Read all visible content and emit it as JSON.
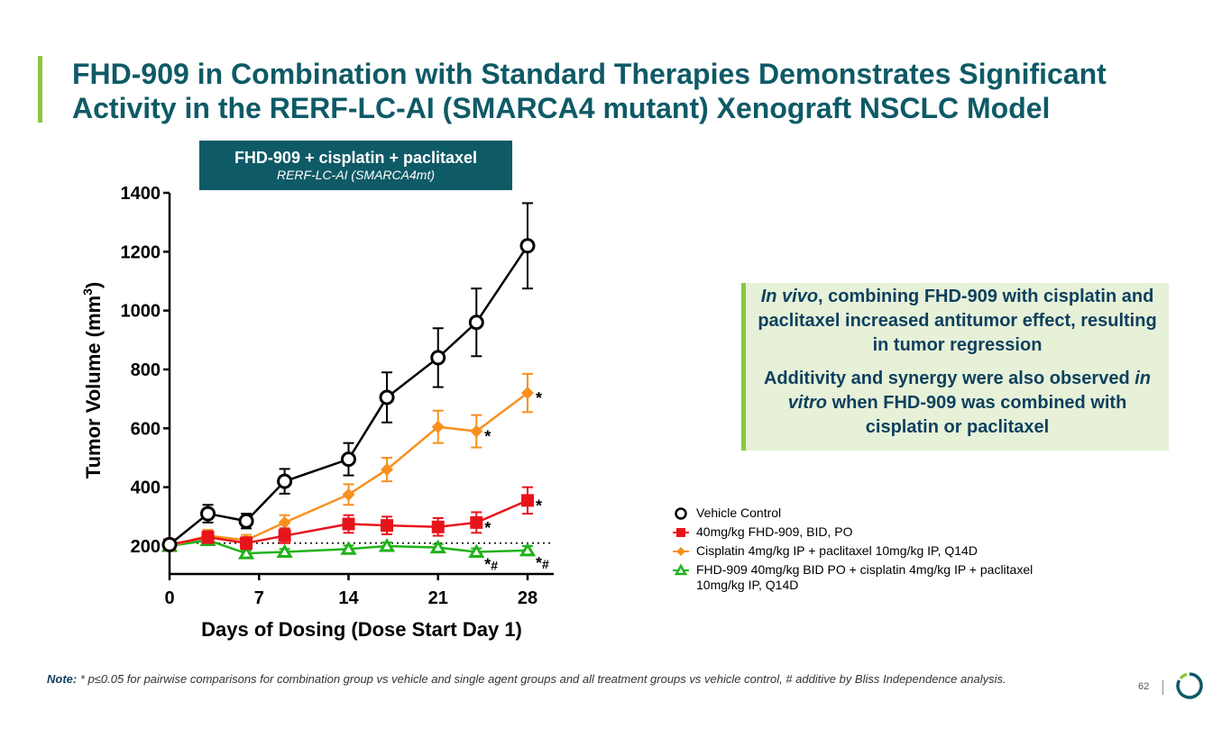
{
  "title": "FHD-909 in Combination with Standard Therapies Demonstrates Significant Activity in the RERF-LC-AI (SMARCA4 mutant) Xenograft NSCLC Model",
  "chart_header": {
    "line1": "FHD-909 + cisplatin + paclitaxel",
    "line2": "RERF-LC-AI (SMARCA4mt)"
  },
  "insight": {
    "p1_em": "In vivo",
    "p1_rest": ", combining FHD-909 with cisplatin and paclitaxel increased antitumor effect, resulting in tumor regression",
    "p2_a": "Additivity and synergy were also observed ",
    "p2_em": "in vitro",
    "p2_b": " when FHD-909 was combined with cisplatin or paclitaxel"
  },
  "note": {
    "label": "Note:",
    "text": " * p≤0.05 for pairwise comparisons for combination group vs vehicle and single agent groups and all treatment groups vs vehicle control, # additive by Bliss Independence analysis."
  },
  "page_number": "62",
  "chart_data": {
    "type": "line",
    "xlabel": "Days of Dosing (Dose Start Day 1)",
    "ylabel": "Tumor Volume (mm",
    "ylabel_sup": "3",
    "ylabel_close": ")",
    "xlim": [
      0,
      30
    ],
    "ylim": [
      100,
      1400
    ],
    "xticks": [
      0,
      7,
      14,
      21,
      28
    ],
    "yticks": [
      200,
      400,
      600,
      800,
      1000,
      1200,
      1400
    ],
    "reference_line": 210,
    "series": [
      {
        "name": "Vehicle Control",
        "color": "#000000",
        "marker": "circle",
        "x": [
          0,
          3,
          6,
          9,
          14,
          17,
          21,
          24,
          28
        ],
        "y": [
          205,
          310,
          285,
          420,
          495,
          705,
          840,
          960,
          1220
        ],
        "err": [
          10,
          30,
          25,
          42,
          55,
          85,
          100,
          115,
          145
        ]
      },
      {
        "name": "40mg/kg FHD-909, BID, PO",
        "color": "#e8141b",
        "marker": "square",
        "x": [
          0,
          3,
          6,
          9,
          14,
          17,
          21,
          24,
          28
        ],
        "y": [
          205,
          230,
          210,
          235,
          275,
          270,
          265,
          280,
          355
        ],
        "err": [
          10,
          20,
          20,
          25,
          30,
          30,
          30,
          35,
          45
        ]
      },
      {
        "name": "Cisplatin 4mg/kg IP + paclitaxel 10mg/kg IP, Q14D",
        "color": "#f7901e",
        "marker": "diamond",
        "x": [
          0,
          3,
          6,
          9,
          14,
          17,
          21,
          24,
          28
        ],
        "y": [
          200,
          235,
          220,
          280,
          375,
          460,
          605,
          590,
          720
        ],
        "err": [
          10,
          20,
          18,
          25,
          35,
          40,
          55,
          55,
          65
        ]
      },
      {
        "name": "FHD-909 40mg/kg BID PO + cisplatin 4mg/kg IP + paclitaxel 10mg/kg IP, Q14D",
        "color": "#21b21a",
        "marker": "triangle",
        "x": [
          0,
          3,
          6,
          9,
          14,
          17,
          21,
          24,
          28
        ],
        "y": [
          200,
          220,
          175,
          180,
          190,
          200,
          195,
          180,
          185
        ],
        "err": [
          10,
          12,
          10,
          10,
          12,
          12,
          12,
          12,
          15
        ]
      }
    ],
    "annotations": [
      {
        "x": 28,
        "y": 720,
        "text": "*"
      },
      {
        "x": 24,
        "y": 590,
        "text": "*"
      },
      {
        "x": 28,
        "y": 355,
        "text": "*"
      },
      {
        "x": 24,
        "y": 280,
        "text": "*"
      },
      {
        "x": 24,
        "y": 180,
        "text": "*#"
      },
      {
        "x": 28,
        "y": 185,
        "text": "*#"
      }
    ]
  }
}
